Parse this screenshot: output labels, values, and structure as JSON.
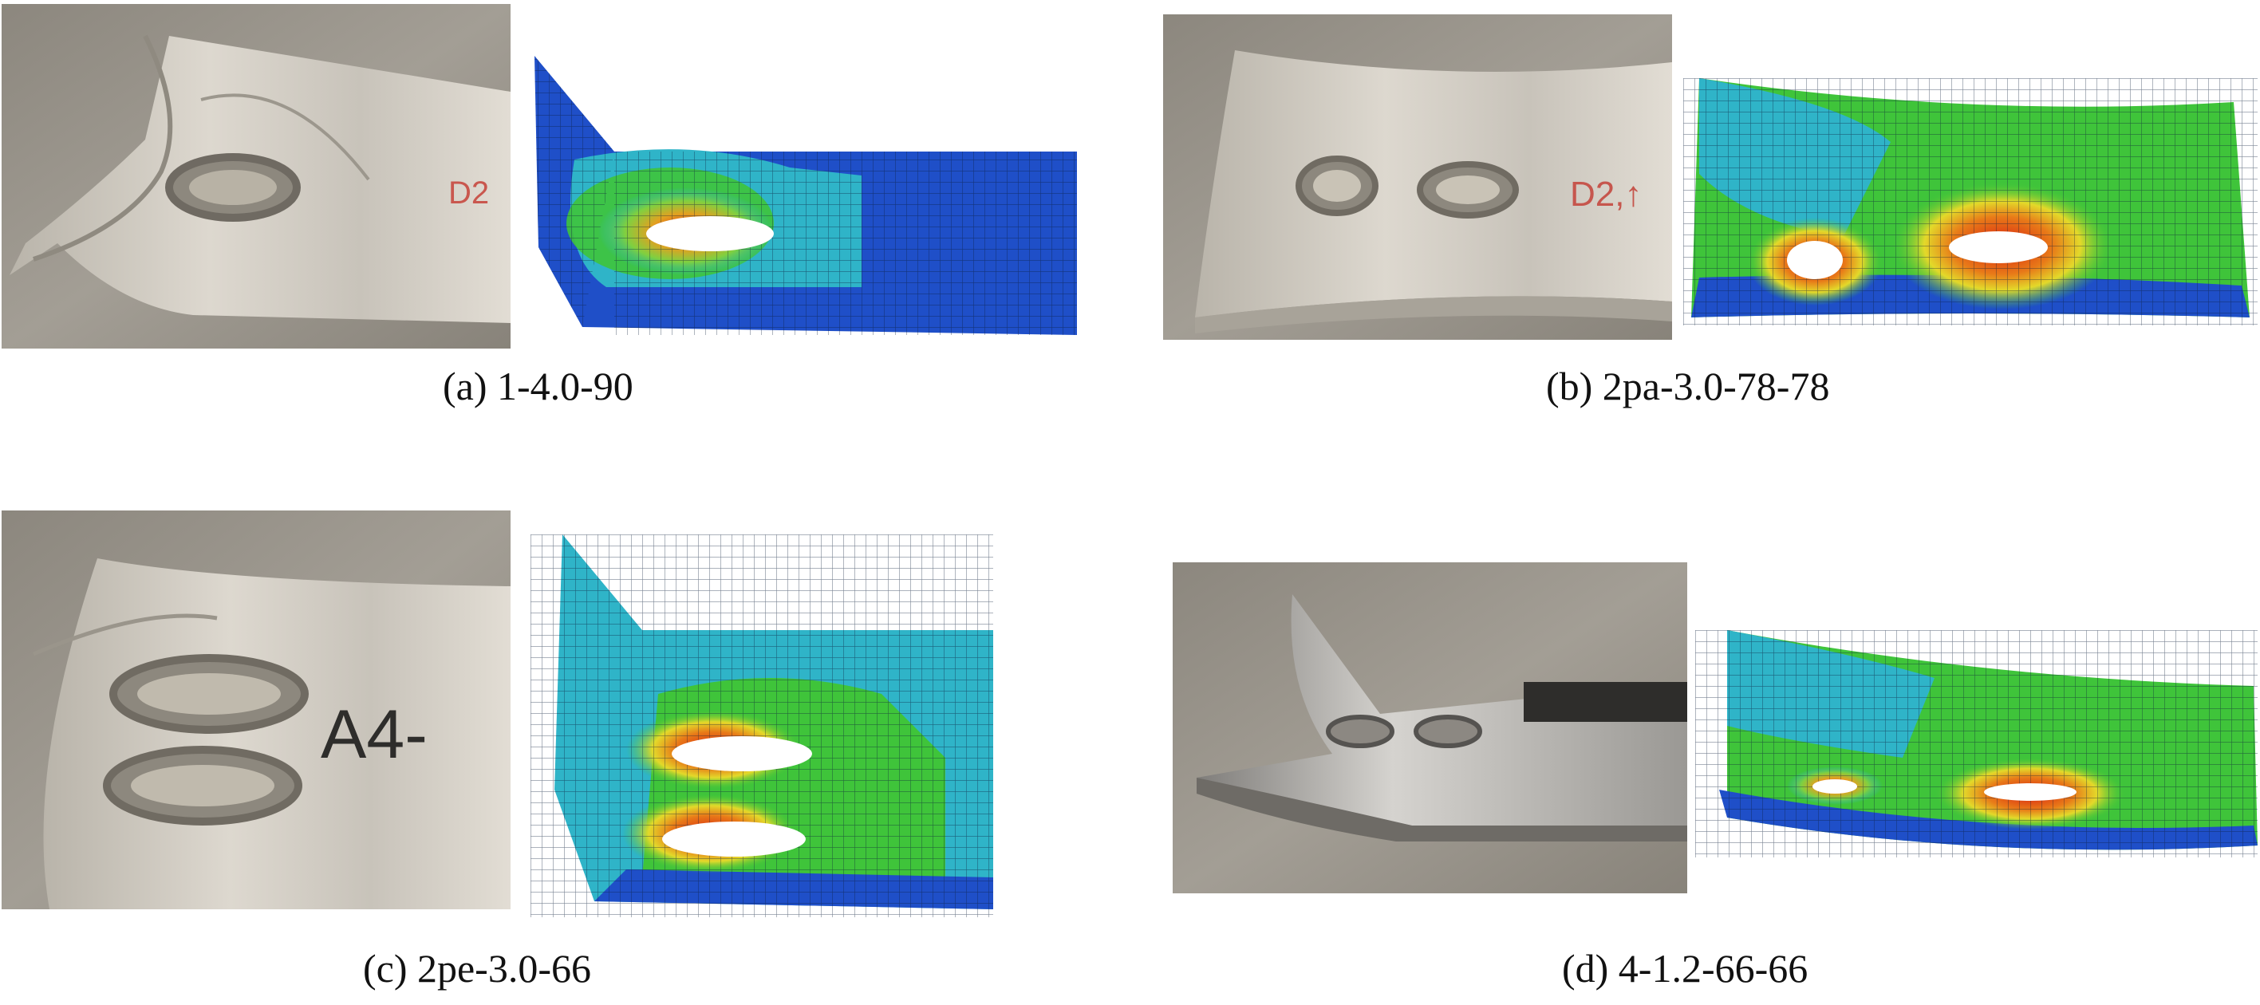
{
  "panels": [
    {
      "id": "a",
      "caption": "(a) 1-4.0-90",
      "photo_mark": "D2"
    },
    {
      "id": "b",
      "caption": "(b) 2pa-3.0-78-78",
      "photo_mark": "D2,↑"
    },
    {
      "id": "c",
      "caption": "(c) 2pe-3.0-66",
      "photo_mark": "A4-"
    },
    {
      "id": "d",
      "caption": "(d) 4-1.2-66-66",
      "photo_mark": ""
    }
  ],
  "colors": {
    "concrete": "#9a958c",
    "steel": "#cfcac0",
    "fem_blue": "#1f4fc8",
    "fem_cyan": "#2fb4c8",
    "fem_green": "#3fc43a",
    "fem_yellow": "#e3d92a",
    "fem_red": "#d81e12"
  }
}
